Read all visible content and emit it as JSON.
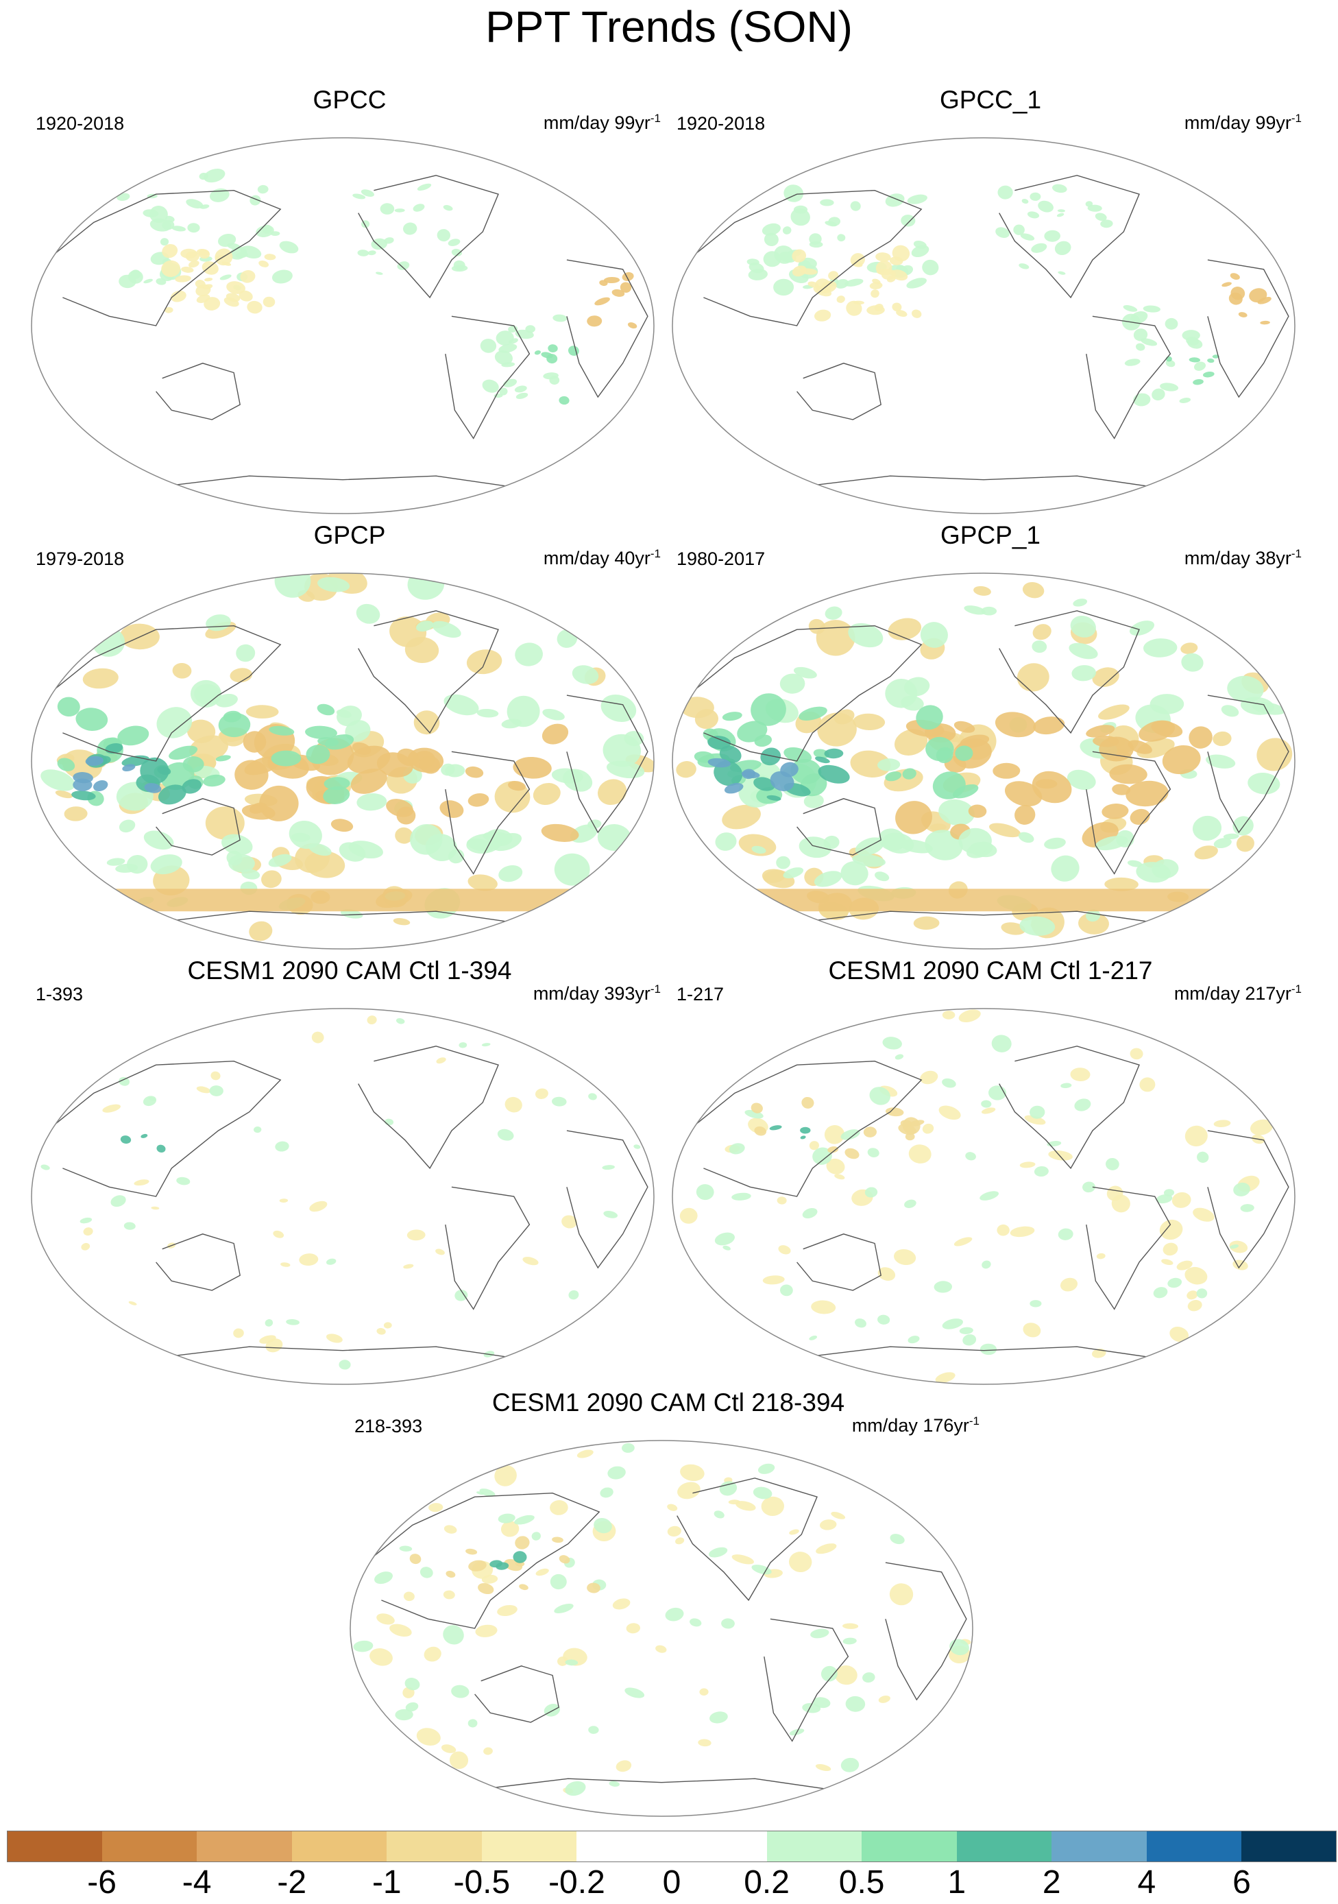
{
  "title": "PPT Trends (SON)",
  "panels": [
    {
      "name": "GPCC",
      "period": "1920-2018",
      "units": "mm/day 99yr",
      "units_sup": "-1",
      "field": "gpcc"
    },
    {
      "name": "GPCC_1",
      "period": "1920-2018",
      "units": "mm/day 99yr",
      "units_sup": "-1",
      "field": "gpcc"
    },
    {
      "name": "GPCP",
      "period": "1979-2018",
      "units": "mm/day 40yr",
      "units_sup": "-1",
      "field": "gpcp"
    },
    {
      "name": "GPCP_1",
      "period": "1980-2017",
      "units": "mm/day 38yr",
      "units_sup": "-1",
      "field": "gpcp"
    },
    {
      "name": "CESM1 2090 CAM Ctl 1-394",
      "period": "1-393",
      "units": "mm/day 393yr",
      "units_sup": "-1",
      "field": "cesm_weak"
    },
    {
      "name": "CESM1 2090 CAM Ctl 1-217",
      "period": "1-217",
      "units": "mm/day 217yr",
      "units_sup": "-1",
      "field": "cesm_mid"
    },
    {
      "name": "CESM1 2090 CAM Ctl 218-394",
      "period": "218-393",
      "units": "mm/day 176yr",
      "units_sup": "-1",
      "field": "cesm_mid"
    }
  ],
  "colorbar": {
    "levels": [
      "-6",
      "-4",
      "-2",
      "-1",
      "-0.5",
      "-0.2",
      "0",
      "0.2",
      "0.5",
      "1",
      "2",
      "4",
      "6"
    ],
    "colors": [
      "#b5652a",
      "#cd8742",
      "#dea462",
      "#ecc478",
      "#f2dc97",
      "#f8eeb4",
      "#ffffff",
      "#ffffff",
      "#c7f7cf",
      "#8fe6b1",
      "#52bc9e",
      "#6aa6c9",
      "#1e6fae",
      "#06385a"
    ]
  }
}
